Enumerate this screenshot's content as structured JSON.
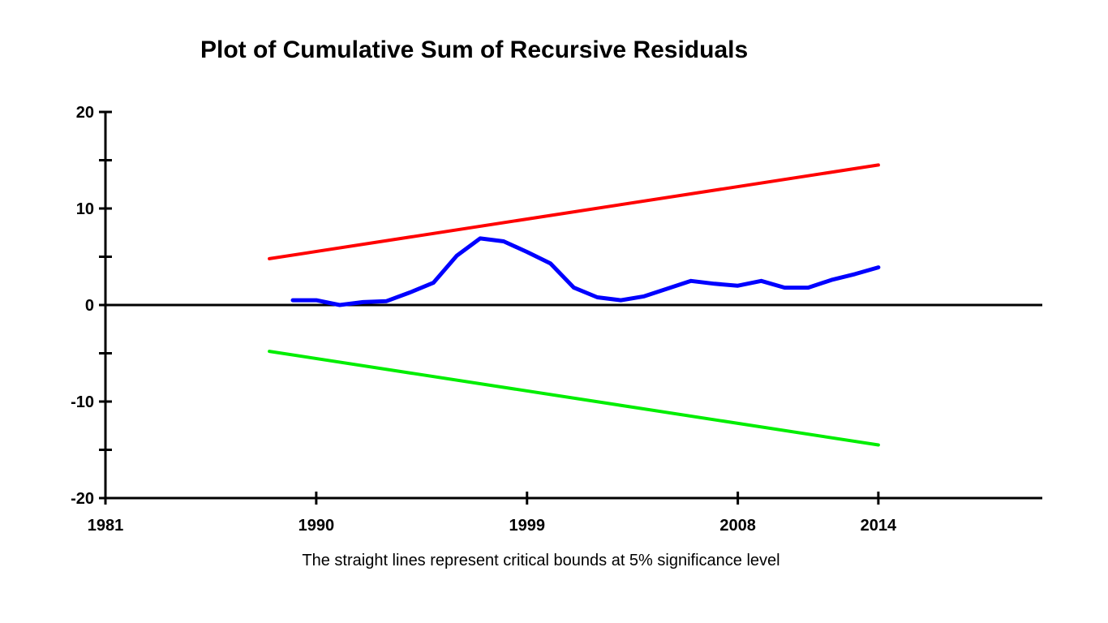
{
  "chart_data": {
    "type": "line",
    "title": "Plot of Cumulative Sum of Recursive Residuals",
    "note": "The straight lines represent critical bounds at 5% significance level",
    "xlabel": "",
    "ylabel": "",
    "xlim": [
      1981,
      2021
    ],
    "ylim": [
      -20,
      20
    ],
    "x_ticks": [
      1981,
      1990,
      1999,
      2008,
      2014
    ],
    "x_tick_labels": [
      "1981",
      "1990",
      "1999",
      "2008",
      "2014"
    ],
    "y_ticks": [
      -20,
      -10,
      0,
      10,
      20
    ],
    "y_tick_labels": [
      "-20",
      "-10",
      "0",
      "10",
      "20"
    ],
    "y_minor_ticks": [
      -15,
      -5,
      5,
      15
    ],
    "grid": false,
    "zero_line": true,
    "series": [
      {
        "color": "#ff0000",
        "x": [
          1988,
          2014
        ],
        "y": [
          4.8,
          14.5
        ]
      },
      {
        "color": "#00ee00",
        "x": [
          1988,
          2014
        ],
        "y": [
          -4.8,
          -14.5
        ]
      },
      {
        "color": "#0000ff",
        "x": [
          1989,
          1990,
          1991,
          1992,
          1993,
          1994,
          1995,
          1996,
          1997,
          1998,
          1999,
          2000,
          2001,
          2002,
          2003,
          2004,
          2005,
          2006,
          2007,
          2008,
          2009,
          2010,
          2011,
          2012,
          2013,
          2014
        ],
        "y": [
          0.5,
          0.5,
          0.0,
          0.3,
          0.4,
          1.3,
          2.3,
          5.1,
          6.9,
          6.6,
          5.5,
          4.3,
          1.8,
          0.8,
          0.5,
          0.9,
          1.7,
          2.5,
          2.2,
          2.0,
          2.5,
          1.8,
          1.8,
          2.6,
          3.2,
          3.9
        ]
      }
    ]
  }
}
